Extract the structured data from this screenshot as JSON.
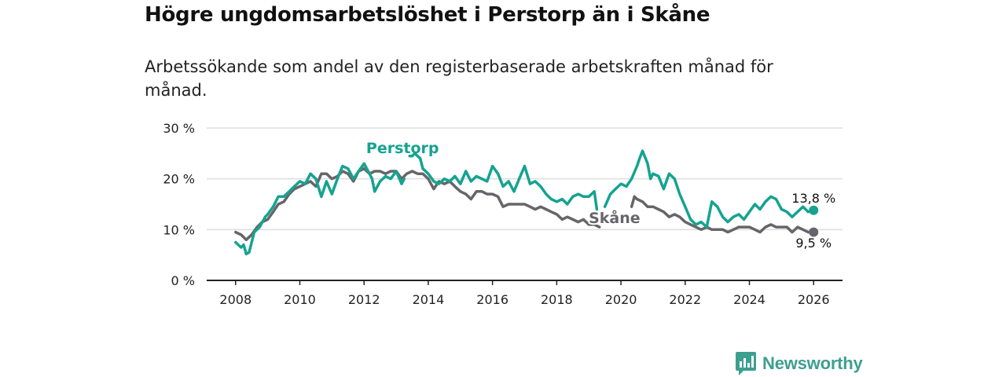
{
  "title": "Högre ungdomsarbetslöshet i Perstorp än i Skåne",
  "subtitle": "Arbetssökande som andel av den registerbaserade arbetskraften månad för månad.",
  "brand": "Newsworthy",
  "colors": {
    "perstorp": "#15a390",
    "skane": "#66666a",
    "grid": "#dddddd",
    "axis": "#222222",
    "brand": "#3d9f90"
  },
  "chart_data": {
    "type": "line",
    "title": "Högre ungdomsarbetslöshet i Perstorp än i Skåne",
    "xlabel": "",
    "ylabel": "",
    "xlim": [
      2007.1,
      2026.9
    ],
    "ylim": [
      0,
      30
    ],
    "y_ticks": [
      0,
      10,
      20,
      30
    ],
    "y_tick_labels": [
      "0 %",
      "10 %",
      "20 %",
      "30 %"
    ],
    "x_ticks": [
      2008,
      2010,
      2012,
      2014,
      2016,
      2018,
      2020,
      2022,
      2024,
      2026
    ],
    "x_tick_labels": [
      "2008",
      "2010",
      "2012",
      "2014",
      "2016",
      "2018",
      "2020",
      "2022",
      "2024",
      "2026"
    ],
    "grid": true,
    "series": [
      {
        "name": "Perstorp",
        "label": "Perstorp",
        "end_label": "13,8 %",
        "points": [
          [
            2008.0,
            7.5
          ],
          [
            2008.17,
            6.5
          ],
          [
            2008.25,
            7.0
          ],
          [
            2008.33,
            5.2
          ],
          [
            2008.42,
            5.5
          ],
          [
            2008.5,
            7.5
          ],
          [
            2008.58,
            9.5
          ],
          [
            2008.75,
            10.5
          ],
          [
            2008.92,
            12.5
          ],
          [
            2009.0,
            13.0
          ],
          [
            2009.17,
            14.5
          ],
          [
            2009.33,
            16.5
          ],
          [
            2009.5,
            16.5
          ],
          [
            2009.67,
            17.5
          ],
          [
            2009.83,
            18.5
          ],
          [
            2010.0,
            19.5
          ],
          [
            2010.17,
            19.0
          ],
          [
            2010.33,
            21.0
          ],
          [
            2010.5,
            20.0
          ],
          [
            2010.67,
            16.5
          ],
          [
            2010.83,
            19.5
          ],
          [
            2011.0,
            17.0
          ],
          [
            2011.17,
            20.0
          ],
          [
            2011.33,
            22.5
          ],
          [
            2011.5,
            22.0
          ],
          [
            2011.67,
            20.0
          ],
          [
            2011.83,
            21.5
          ],
          [
            2012.0,
            23.0
          ],
          [
            2012.17,
            21.0
          ],
          [
            2012.25,
            20.0
          ],
          [
            2012.33,
            17.5
          ],
          [
            2012.5,
            19.5
          ],
          [
            2012.67,
            20.5
          ],
          [
            2012.83,
            20.0
          ],
          [
            2013.0,
            21.5
          ],
          [
            2013.17,
            19.0
          ],
          [
            2013.25,
            20.0
          ]
        ],
        "points_b": [
          [
            2013.42,
            24.5
          ],
          [
            2013.5,
            24.5
          ],
          [
            2013.58,
            25.0
          ],
          [
            2013.75,
            24.0
          ],
          [
            2013.83,
            22.0
          ],
          [
            2014.0,
            21.0
          ],
          [
            2014.17,
            19.5
          ],
          [
            2014.33,
            19.0
          ],
          [
            2014.5,
            20.0
          ],
          [
            2014.67,
            19.5
          ],
          [
            2014.83,
            20.5
          ],
          [
            2015.0,
            19.0
          ],
          [
            2015.17,
            21.5
          ],
          [
            2015.33,
            19.5
          ],
          [
            2015.5,
            20.5
          ],
          [
            2015.67,
            20.0
          ],
          [
            2015.83,
            19.5
          ],
          [
            2016.0,
            22.5
          ],
          [
            2016.17,
            21.0
          ],
          [
            2016.33,
            18.5
          ],
          [
            2016.5,
            19.5
          ],
          [
            2016.67,
            17.5
          ],
          [
            2016.83,
            20.0
          ],
          [
            2017.0,
            22.5
          ],
          [
            2017.17,
            19.0
          ],
          [
            2017.33,
            19.5
          ],
          [
            2017.5,
            18.5
          ],
          [
            2017.67,
            17.0
          ],
          [
            2017.83,
            16.0
          ],
          [
            2018.0,
            15.5
          ],
          [
            2018.17,
            16.0
          ],
          [
            2018.33,
            15.0
          ],
          [
            2018.5,
            16.5
          ],
          [
            2018.67,
            17.0
          ],
          [
            2018.83,
            16.5
          ],
          [
            2019.0,
            16.5
          ],
          [
            2019.17,
            17.5
          ],
          [
            2019.25,
            14.0
          ]
        ],
        "points_c": [
          [
            2019.5,
            14.5
          ],
          [
            2019.67,
            17.0
          ],
          [
            2019.83,
            18.0
          ],
          [
            2020.0,
            19.0
          ],
          [
            2020.17,
            18.5
          ],
          [
            2020.33,
            20.0
          ],
          [
            2020.5,
            22.5
          ],
          [
            2020.58,
            24.0
          ],
          [
            2020.67,
            25.5
          ],
          [
            2020.83,
            23.0
          ],
          [
            2020.92,
            20.0
          ],
          [
            2021.0,
            21.0
          ],
          [
            2021.17,
            20.5
          ],
          [
            2021.33,
            18.0
          ],
          [
            2021.5,
            21.0
          ],
          [
            2021.67,
            20.0
          ],
          [
            2021.83,
            17.0
          ],
          [
            2022.0,
            14.5
          ],
          [
            2022.17,
            12.0
          ],
          [
            2022.33,
            11.0
          ],
          [
            2022.5,
            11.5
          ],
          [
            2022.67,
            10.5
          ],
          [
            2022.83,
            15.5
          ],
          [
            2023.0,
            14.5
          ],
          [
            2023.17,
            12.5
          ],
          [
            2023.33,
            11.5
          ],
          [
            2023.5,
            12.5
          ],
          [
            2023.67,
            13.0
          ],
          [
            2023.83,
            12.0
          ],
          [
            2024.0,
            13.5
          ],
          [
            2024.17,
            15.0
          ],
          [
            2024.33,
            14.0
          ],
          [
            2024.5,
            15.5
          ],
          [
            2024.67,
            16.5
          ],
          [
            2024.83,
            16.0
          ],
          [
            2025.0,
            14.0
          ],
          [
            2025.17,
            13.5
          ],
          [
            2025.33,
            12.5
          ],
          [
            2025.5,
            13.5
          ],
          [
            2025.67,
            14.5
          ],
          [
            2025.83,
            13.5
          ],
          [
            2026.0,
            13.8
          ]
        ]
      },
      {
        "name": "Skåne",
        "label": "Skåne",
        "end_label": "9,5 %",
        "points": [
          [
            2008.0,
            9.5
          ],
          [
            2008.17,
            9.0
          ],
          [
            2008.33,
            8.0
          ],
          [
            2008.5,
            9.0
          ],
          [
            2008.67,
            10.5
          ],
          [
            2008.83,
            11.5
          ],
          [
            2009.0,
            12.0
          ],
          [
            2009.17,
            13.5
          ],
          [
            2009.33,
            15.0
          ],
          [
            2009.5,
            15.5
          ],
          [
            2009.67,
            17.0
          ],
          [
            2009.83,
            18.0
          ],
          [
            2010.0,
            18.5
          ],
          [
            2010.17,
            19.0
          ],
          [
            2010.33,
            19.5
          ],
          [
            2010.5,
            18.5
          ],
          [
            2010.67,
            21.0
          ],
          [
            2010.83,
            21.0
          ],
          [
            2011.0,
            20.0
          ],
          [
            2011.17,
            20.5
          ],
          [
            2011.33,
            21.5
          ],
          [
            2011.5,
            21.0
          ],
          [
            2011.67,
            19.5
          ],
          [
            2011.83,
            21.5
          ],
          [
            2012.0,
            22.0
          ],
          [
            2012.17,
            21.0
          ],
          [
            2012.33,
            21.5
          ],
          [
            2012.5,
            21.5
          ],
          [
            2012.67,
            21.0
          ],
          [
            2012.83,
            21.5
          ],
          [
            2013.0,
            21.5
          ],
          [
            2013.17,
            20.0
          ],
          [
            2013.33,
            21.0
          ],
          [
            2013.5,
            21.5
          ],
          [
            2013.67,
            21.0
          ],
          [
            2013.83,
            21.0
          ],
          [
            2014.0,
            20.0
          ],
          [
            2014.17,
            18.0
          ],
          [
            2014.33,
            19.5
          ],
          [
            2014.5,
            19.0
          ],
          [
            2014.67,
            19.5
          ],
          [
            2014.83,
            18.5
          ],
          [
            2015.0,
            17.5
          ],
          [
            2015.17,
            17.0
          ],
          [
            2015.33,
            16.0
          ],
          [
            2015.5,
            17.5
          ],
          [
            2015.67,
            17.5
          ],
          [
            2015.83,
            17.0
          ],
          [
            2016.0,
            17.0
          ],
          [
            2016.17,
            16.5
          ],
          [
            2016.33,
            14.5
          ],
          [
            2016.5,
            15.0
          ],
          [
            2016.67,
            15.0
          ],
          [
            2016.83,
            15.0
          ],
          [
            2017.0,
            15.0
          ],
          [
            2017.17,
            14.5
          ],
          [
            2017.33,
            14.0
          ],
          [
            2017.5,
            14.5
          ],
          [
            2017.67,
            14.0
          ],
          [
            2017.83,
            13.5
          ],
          [
            2018.0,
            13.0
          ],
          [
            2018.17,
            12.0
          ],
          [
            2018.33,
            12.5
          ],
          [
            2018.5,
            12.0
          ],
          [
            2018.67,
            11.5
          ],
          [
            2018.83,
            12.0
          ],
          [
            2019.0,
            11.0
          ],
          [
            2019.17,
            11.0
          ],
          [
            2019.33,
            10.5
          ]
        ],
        "points_b": [
          [
            2020.33,
            14.5
          ],
          [
            2020.42,
            16.5
          ],
          [
            2020.5,
            16.0
          ],
          [
            2020.67,
            15.5
          ],
          [
            2020.83,
            14.5
          ],
          [
            2021.0,
            14.5
          ],
          [
            2021.17,
            14.0
          ],
          [
            2021.33,
            13.5
          ],
          [
            2021.5,
            12.5
          ],
          [
            2021.67,
            13.0
          ],
          [
            2021.83,
            12.5
          ],
          [
            2022.0,
            11.5
          ],
          [
            2022.17,
            11.0
          ],
          [
            2022.33,
            10.5
          ],
          [
            2022.5,
            10.0
          ],
          [
            2022.67,
            10.5
          ],
          [
            2022.83,
            10.0
          ],
          [
            2023.0,
            10.0
          ],
          [
            2023.17,
            10.0
          ],
          [
            2023.33,
            9.5
          ],
          [
            2023.5,
            10.0
          ],
          [
            2023.67,
            10.5
          ],
          [
            2023.83,
            10.5
          ],
          [
            2024.0,
            10.5
          ],
          [
            2024.17,
            10.0
          ],
          [
            2024.33,
            9.5
          ],
          [
            2024.5,
            10.5
          ],
          [
            2024.67,
            11.0
          ],
          [
            2024.83,
            10.5
          ],
          [
            2025.0,
            10.5
          ],
          [
            2025.17,
            10.5
          ],
          [
            2025.33,
            9.5
          ],
          [
            2025.5,
            10.5
          ],
          [
            2025.67,
            10.0
          ],
          [
            2025.83,
            9.5
          ],
          [
            2026.0,
            9.5
          ]
        ]
      }
    ]
  }
}
